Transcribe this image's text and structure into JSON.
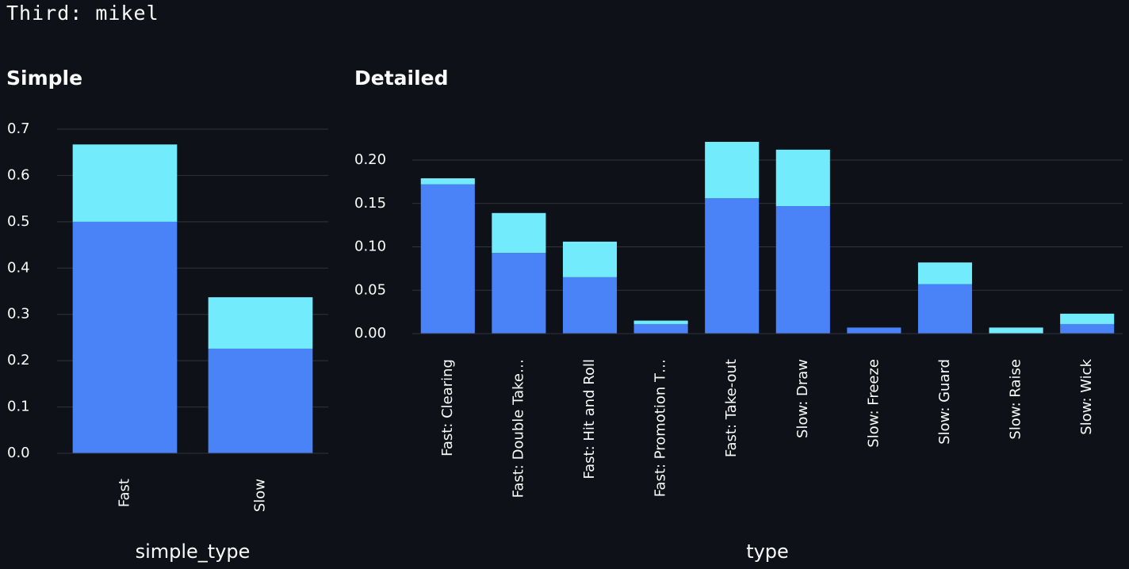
{
  "header": {
    "text": "Third: mikel"
  },
  "colors": {
    "background": "#0e1117",
    "bar_bottom": "#4a83f7",
    "bar_top": "#72ecfd",
    "grid": "#31333f",
    "text": "#fafafa"
  },
  "chart_data": [
    {
      "type": "bar",
      "stacked": true,
      "title": "Simple",
      "xlabel": "simple_type",
      "ylabel": "",
      "ylim": [
        0,
        0.7
      ],
      "yticks": [
        "0.0",
        "0.1",
        "0.2",
        "0.3",
        "0.4",
        "0.5",
        "0.6",
        "0.7"
      ],
      "categories": [
        "Fast",
        "Slow"
      ],
      "series": [
        {
          "values": [
            0.5,
            0.226
          ]
        },
        {
          "values": [
            0.167,
            0.111
          ]
        }
      ],
      "grid": true,
      "legend": "none"
    },
    {
      "type": "bar",
      "stacked": true,
      "title": "Detailed",
      "xlabel": "type",
      "ylabel": "",
      "ylim": [
        0,
        0.2
      ],
      "yticks": [
        "0.00",
        "0.05",
        "0.10",
        "0.15",
        "0.20"
      ],
      "categories": [
        "Fast: Clearing",
        "Fast: Double Take…",
        "Fast: Hit and Roll",
        "Fast: Promotion T…",
        "Fast: Take-out",
        "Slow: Draw",
        "Slow: Freeze",
        "Slow: Guard",
        "Slow: Raise",
        "Slow: Wick"
      ],
      "series": [
        {
          "values": [
            0.172,
            0.093,
            0.065,
            0.011,
            0.156,
            0.147,
            0.007,
            0.057,
            0.0,
            0.011
          ]
        },
        {
          "values": [
            0.007,
            0.046,
            0.041,
            0.004,
            0.065,
            0.065,
            0.0,
            0.025,
            0.007,
            0.012
          ]
        }
      ],
      "grid": true,
      "legend": "none"
    }
  ]
}
